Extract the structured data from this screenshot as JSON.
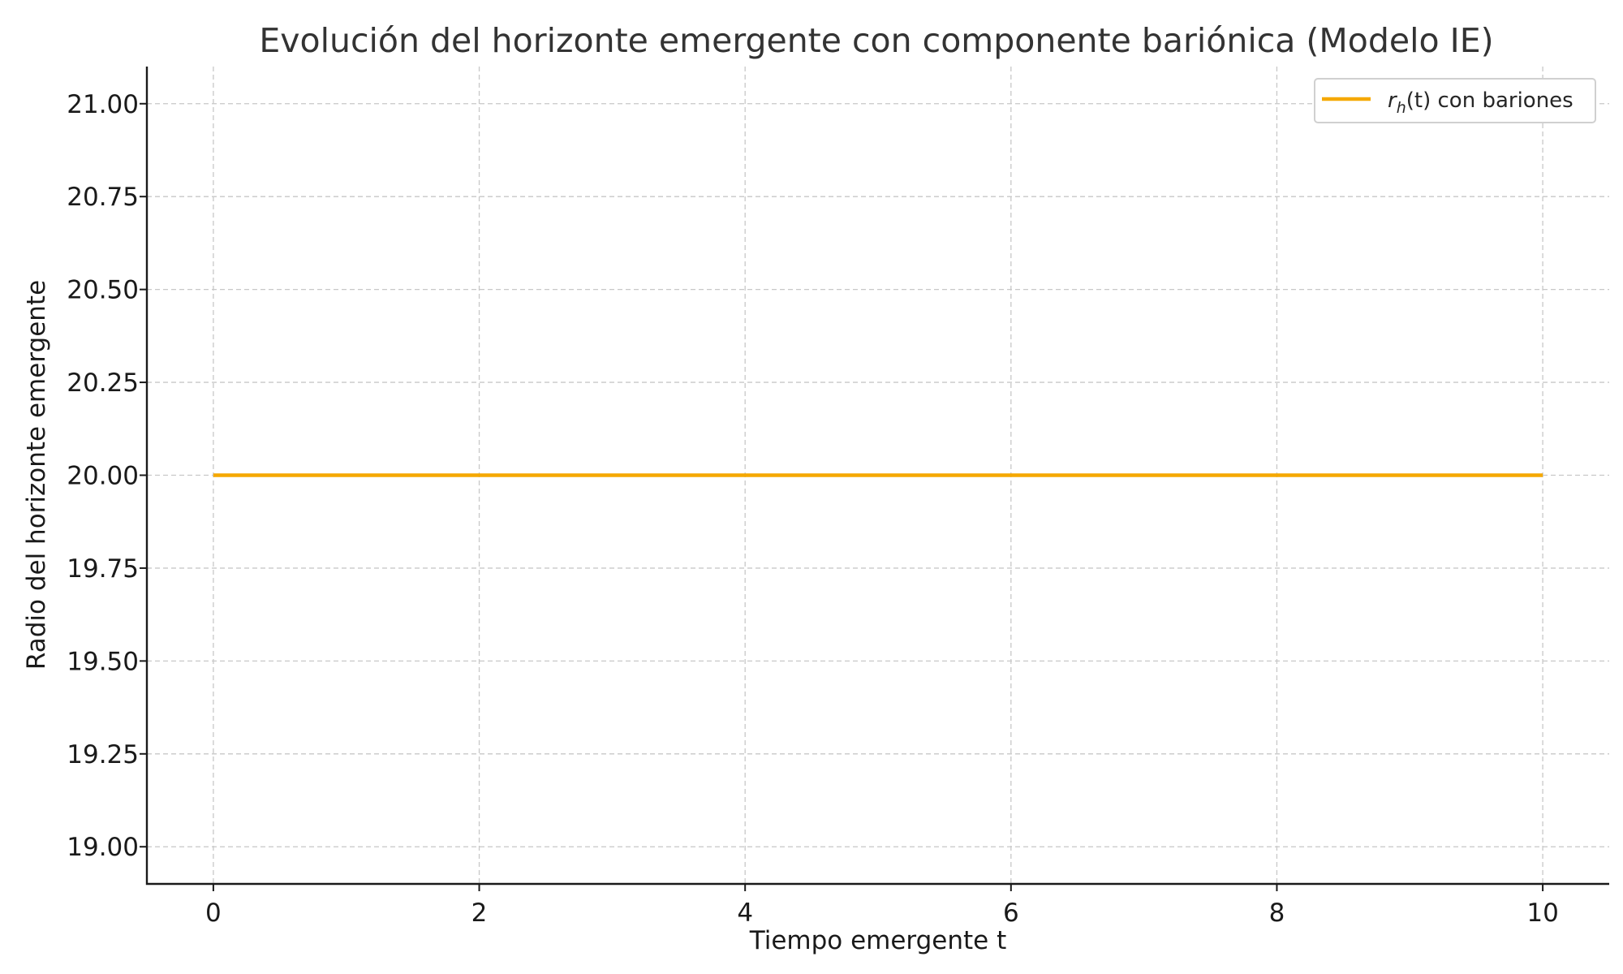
{
  "chart_data": {
    "type": "line",
    "title": "Evolución del horizonte emergente con componente bariónica (Modelo IE)",
    "xlabel": "Tiempo emergente t",
    "ylabel": "Radio del horizonte emergente",
    "xlim": [
      -0.5,
      10.5
    ],
    "ylim": [
      18.9,
      21.1
    ],
    "xticks": [
      0,
      2,
      4,
      6,
      8,
      10
    ],
    "xtick_labels": [
      "0",
      "2",
      "4",
      "6",
      "8",
      "10"
    ],
    "yticks": [
      19.0,
      19.25,
      19.5,
      19.75,
      20.0,
      20.25,
      20.5,
      20.75,
      21.0
    ],
    "ytick_labels": [
      "19.00",
      "19.25",
      "19.50",
      "19.75",
      "20.00",
      "20.25",
      "20.50",
      "20.75",
      "21.00"
    ],
    "grid": true,
    "legend_position": "top-right",
    "series": [
      {
        "name_var": "r",
        "name_sub": "h",
        "name_rest": "(t) con bariones",
        "color": "#f5a800",
        "x": [
          0,
          2,
          4,
          6,
          8,
          10
        ],
        "y": [
          20.0,
          20.0,
          20.0,
          20.0,
          20.0,
          20.0
        ]
      }
    ]
  }
}
